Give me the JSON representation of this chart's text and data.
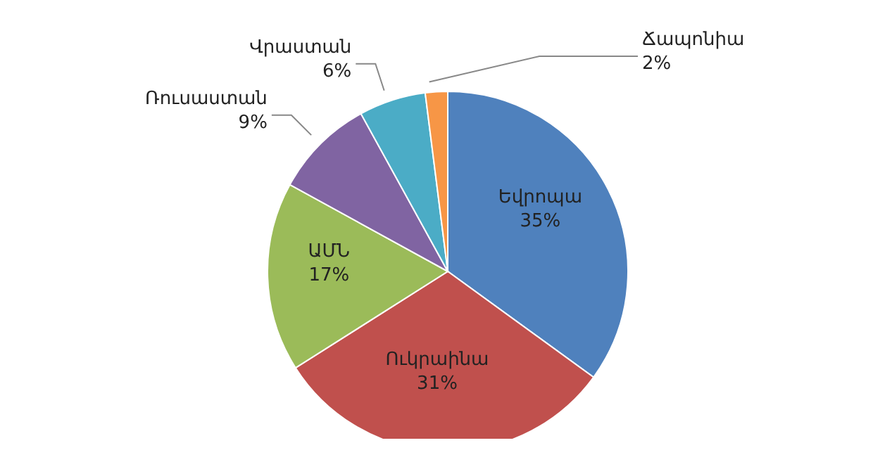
{
  "chart_data": {
    "type": "pie",
    "categories": [
      "Եվրոպա",
      "Ուկրաինա",
      "ԱՄՆ",
      "Ռուսաստան",
      "Վրաստան",
      "Ճապոնիա"
    ],
    "values": [
      35,
      31,
      17,
      9,
      6,
      2
    ],
    "colors": [
      "#4f81bd",
      "#c0504d",
      "#9bbb59",
      "#8064a2",
      "#4bacc6",
      "#f79646"
    ],
    "value_labels": [
      "35%",
      "31%",
      "17%",
      "9%",
      "6%",
      "2%"
    ]
  }
}
